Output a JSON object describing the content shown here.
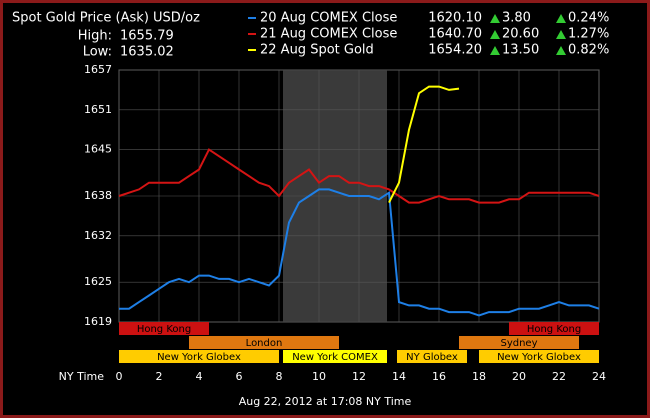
{
  "chart_data": {
    "type": "line",
    "title": "Spot Gold Price (Ask) USD/oz",
    "stats": [
      {
        "label": "High:",
        "value": "1655.79"
      },
      {
        "label": "Low:",
        "value": "1635.02"
      }
    ],
    "x": [
      0,
      0.5,
      1,
      1.5,
      2,
      2.5,
      3,
      3.5,
      4,
      4.5,
      5,
      5.5,
      6,
      6.5,
      7,
      7.5,
      8,
      8.5,
      9,
      9.5,
      10,
      10.5,
      11,
      11.5,
      12,
      12.5,
      13,
      13.5,
      14,
      14.5,
      15,
      15.5,
      16,
      16.5,
      17,
      17.5,
      18,
      18.5,
      19,
      19.5,
      20,
      20.5,
      21,
      21.5,
      22,
      22.5,
      23,
      23.5,
      24
    ],
    "series": [
      {
        "name": "20 Aug COMEX Close",
        "color": "#1e7fe6",
        "close": "1620.10",
        "change": "3.80",
        "change_pct": "0.24%",
        "values": [
          1621,
          1621,
          1622,
          1623,
          1624,
          1625,
          1625.5,
          1625,
          1626,
          1626,
          1625.5,
          1625.5,
          1625,
          1625.5,
          1625,
          1624.5,
          1626,
          1634,
          1637,
          1638,
          1639,
          1639,
          1638.5,
          1638,
          1638,
          1638,
          1637.5,
          1638.5,
          1622,
          1621.5,
          1621.5,
          1621,
          1621,
          1620.5,
          1620.5,
          1620.5,
          1620,
          1620.5,
          1620.5,
          1620.5,
          1621,
          1621,
          1621,
          1621.5,
          1622,
          1621.5,
          1621.5,
          1621.5,
          1621
        ]
      },
      {
        "name": "21 Aug COMEX Close",
        "color": "#d41414",
        "close": "1640.70",
        "change": "20.60",
        "change_pct": "1.27%",
        "values": [
          1638,
          1638.5,
          1639,
          1640,
          1640,
          1640,
          1640,
          1641,
          1642,
          1645,
          1644,
          1643,
          1642,
          1641,
          1640,
          1639.5,
          1638,
          1640,
          1641,
          1642,
          1640,
          1641,
          1641,
          1640,
          1640,
          1639.5,
          1639.5,
          1639,
          1638,
          1637,
          1637,
          1637.5,
          1638,
          1637.5,
          1637.5,
          1637.5,
          1637,
          1637,
          1637,
          1637.5,
          1637.5,
          1638.5,
          1638.5,
          1638.5,
          1638.5,
          1638.5,
          1638.5,
          1638.5,
          1638
        ]
      },
      {
        "name": "22 Aug Spot Gold",
        "color": "#ffff00",
        "close": "1654.20",
        "change": "13.50",
        "change_pct": "0.82%",
        "values": [
          null,
          null,
          null,
          null,
          null,
          null,
          null,
          null,
          null,
          null,
          null,
          null,
          null,
          null,
          null,
          null,
          null,
          null,
          null,
          null,
          null,
          null,
          null,
          null,
          null,
          null,
          null,
          1637,
          1640,
          1648,
          1653.5,
          1654.5,
          1654.5,
          1654,
          1654.2,
          null,
          null,
          null,
          null,
          null,
          null,
          null,
          null,
          null,
          null,
          null,
          null,
          null,
          null
        ]
      }
    ],
    "shaded_region": [
      8.2,
      13.4
    ],
    "xlim": [
      0,
      24
    ],
    "xticks": [
      0,
      2,
      4,
      6,
      8,
      10,
      12,
      14,
      16,
      18,
      20,
      22,
      24
    ],
    "ylim": [
      1619,
      1657
    ],
    "yticks": [
      1657,
      1651,
      1645,
      1638,
      1632,
      1625,
      1619
    ],
    "xlabel": "NY Time",
    "sessions": [
      {
        "name": "Hong Kong",
        "start": 0,
        "end": 4.5,
        "row": 0,
        "color": "#cc1111"
      },
      {
        "name": "London",
        "start": 3.5,
        "end": 11,
        "row": 1,
        "color": "#e07810"
      },
      {
        "name": "New York Globex",
        "start": 0,
        "end": 8,
        "row": 2,
        "color": "#ffcc00"
      },
      {
        "name": "New York COMEX",
        "start": 8.2,
        "end": 13.4,
        "row": 2,
        "color": "#ffff00"
      },
      {
        "name": "NY Globex",
        "start": 13.9,
        "end": 17.4,
        "row": 2,
        "color": "#ffcc00"
      },
      {
        "name": "Hong Kong",
        "start": 19.5,
        "end": 24,
        "row": 0,
        "color": "#cc1111"
      },
      {
        "name": "Sydney",
        "start": 17,
        "end": 23,
        "row": 1,
        "color": "#e07810"
      },
      {
        "name": "New York Globex",
        "start": 18,
        "end": 24,
        "row": 2,
        "color": "#ffcc00"
      }
    ],
    "footer": "Aug 22, 2012 at 17:08 NY Time"
  }
}
